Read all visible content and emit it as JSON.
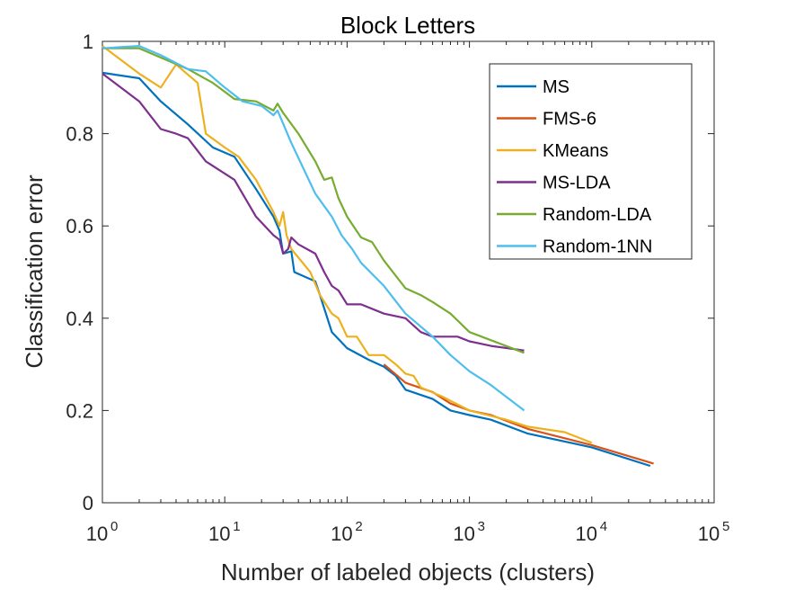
{
  "chart_data": {
    "type": "line",
    "title": "Block Letters",
    "xlabel": "Number of labeled objects (clusters)",
    "ylabel": "Classification error",
    "xscale": "log",
    "xlim": [
      1,
      100000
    ],
    "ylim": [
      0,
      1
    ],
    "x_ticks": [
      {
        "base": "10",
        "exp": "0",
        "value": 1
      },
      {
        "base": "10",
        "exp": "1",
        "value": 10
      },
      {
        "base": "10",
        "exp": "2",
        "value": 100
      },
      {
        "base": "10",
        "exp": "3",
        "value": 1000
      },
      {
        "base": "10",
        "exp": "4",
        "value": 10000
      },
      {
        "base": "10",
        "exp": "5",
        "value": 100000
      }
    ],
    "y_ticks": [
      {
        "label": "0",
        "value": 0
      },
      {
        "label": "0.2",
        "value": 0.2
      },
      {
        "label": "0.4",
        "value": 0.4
      },
      {
        "label": "0.6",
        "value": 0.6
      },
      {
        "label": "0.8",
        "value": 0.8
      },
      {
        "label": "1",
        "value": 1
      }
    ],
    "grid": false,
    "legend_position": "top-right",
    "series": [
      {
        "name": "MS",
        "color": "#0072BD",
        "points": [
          [
            1,
            0.932
          ],
          [
            2,
            0.92
          ],
          [
            3,
            0.87
          ],
          [
            5,
            0.82
          ],
          [
            8,
            0.77
          ],
          [
            12,
            0.75
          ],
          [
            18,
            0.68
          ],
          [
            25,
            0.62
          ],
          [
            28,
            0.59
          ],
          [
            30,
            0.54
          ],
          [
            35,
            0.545
          ],
          [
            37,
            0.5
          ],
          [
            45,
            0.49
          ],
          [
            55,
            0.48
          ],
          [
            60,
            0.45
          ],
          [
            75,
            0.37
          ],
          [
            100,
            0.335
          ],
          [
            150,
            0.31
          ],
          [
            200,
            0.295
          ],
          [
            250,
            0.275
          ],
          [
            300,
            0.245
          ],
          [
            500,
            0.225
          ],
          [
            700,
            0.2
          ],
          [
            1000,
            0.19
          ],
          [
            1500,
            0.18
          ],
          [
            3000,
            0.15
          ],
          [
            10000,
            0.12
          ],
          [
            30000,
            0.08
          ]
        ]
      },
      {
        "name": "FMS-6",
        "color": "#D95319",
        "points": [
          [
            200,
            0.3
          ],
          [
            300,
            0.26
          ],
          [
            500,
            0.24
          ],
          [
            700,
            0.215
          ],
          [
            1000,
            0.2
          ],
          [
            1500,
            0.19
          ],
          [
            3000,
            0.16
          ],
          [
            10000,
            0.125
          ],
          [
            32000,
            0.085
          ]
        ]
      },
      {
        "name": "KMeans",
        "color": "#EDB120",
        "points": [
          [
            1,
            0.99
          ],
          [
            2,
            0.93
          ],
          [
            3,
            0.9
          ],
          [
            4,
            0.95
          ],
          [
            6,
            0.91
          ],
          [
            7,
            0.8
          ],
          [
            10,
            0.77
          ],
          [
            13,
            0.75
          ],
          [
            18,
            0.7
          ],
          [
            25,
            0.63
          ],
          [
            28,
            0.6
          ],
          [
            30,
            0.63
          ],
          [
            32,
            0.58
          ],
          [
            35,
            0.55
          ],
          [
            50,
            0.5
          ],
          [
            60,
            0.45
          ],
          [
            75,
            0.41
          ],
          [
            85,
            0.4
          ],
          [
            100,
            0.36
          ],
          [
            120,
            0.36
          ],
          [
            150,
            0.32
          ],
          [
            200,
            0.32
          ],
          [
            250,
            0.3
          ],
          [
            300,
            0.28
          ],
          [
            350,
            0.275
          ],
          [
            400,
            0.25
          ],
          [
            600,
            0.23
          ],
          [
            1000,
            0.2
          ],
          [
            2000,
            0.18
          ],
          [
            3000,
            0.165
          ],
          [
            6000,
            0.153
          ],
          [
            10000,
            0.13
          ]
        ]
      },
      {
        "name": "MS-LDA",
        "color": "#7E2F8E",
        "points": [
          [
            1,
            0.93
          ],
          [
            2,
            0.87
          ],
          [
            3,
            0.81
          ],
          [
            4,
            0.8
          ],
          [
            5,
            0.79
          ],
          [
            7,
            0.74
          ],
          [
            12,
            0.7
          ],
          [
            18,
            0.62
          ],
          [
            25,
            0.58
          ],
          [
            28,
            0.57
          ],
          [
            30,
            0.54
          ],
          [
            33,
            0.55
          ],
          [
            35,
            0.575
          ],
          [
            40,
            0.56
          ],
          [
            55,
            0.54
          ],
          [
            65,
            0.5
          ],
          [
            75,
            0.47
          ],
          [
            85,
            0.46
          ],
          [
            100,
            0.43
          ],
          [
            130,
            0.43
          ],
          [
            200,
            0.41
          ],
          [
            300,
            0.4
          ],
          [
            400,
            0.37
          ],
          [
            500,
            0.36
          ],
          [
            800,
            0.36
          ],
          [
            1000,
            0.35
          ],
          [
            1500,
            0.34
          ],
          [
            2800,
            0.33
          ]
        ]
      },
      {
        "name": "Random-LDA",
        "color": "#77AC30",
        "points": [
          [
            1,
            0.985
          ],
          [
            2,
            0.985
          ],
          [
            3,
            0.965
          ],
          [
            5,
            0.94
          ],
          [
            8,
            0.91
          ],
          [
            12,
            0.875
          ],
          [
            18,
            0.87
          ],
          [
            25,
            0.85
          ],
          [
            27,
            0.865
          ],
          [
            30,
            0.845
          ],
          [
            40,
            0.8
          ],
          [
            55,
            0.74
          ],
          [
            65,
            0.7
          ],
          [
            75,
            0.705
          ],
          [
            85,
            0.66
          ],
          [
            100,
            0.62
          ],
          [
            130,
            0.575
          ],
          [
            160,
            0.565
          ],
          [
            200,
            0.525
          ],
          [
            300,
            0.465
          ],
          [
            400,
            0.45
          ],
          [
            500,
            0.435
          ],
          [
            700,
            0.41
          ],
          [
            1000,
            0.37
          ],
          [
            2800,
            0.325
          ]
        ]
      },
      {
        "name": "Random-1NN",
        "color": "#4DBEEE",
        "points": [
          [
            1,
            0.985
          ],
          [
            2,
            0.99
          ],
          [
            3,
            0.97
          ],
          [
            5,
            0.94
          ],
          [
            7,
            0.935
          ],
          [
            10,
            0.9
          ],
          [
            14,
            0.87
          ],
          [
            20,
            0.86
          ],
          [
            25,
            0.84
          ],
          [
            27,
            0.85
          ],
          [
            35,
            0.78
          ],
          [
            55,
            0.67
          ],
          [
            75,
            0.62
          ],
          [
            90,
            0.58
          ],
          [
            110,
            0.55
          ],
          [
            130,
            0.52
          ],
          [
            200,
            0.47
          ],
          [
            300,
            0.41
          ],
          [
            500,
            0.36
          ],
          [
            700,
            0.32
          ],
          [
            1000,
            0.285
          ],
          [
            1500,
            0.255
          ],
          [
            2800,
            0.2
          ]
        ]
      }
    ]
  }
}
